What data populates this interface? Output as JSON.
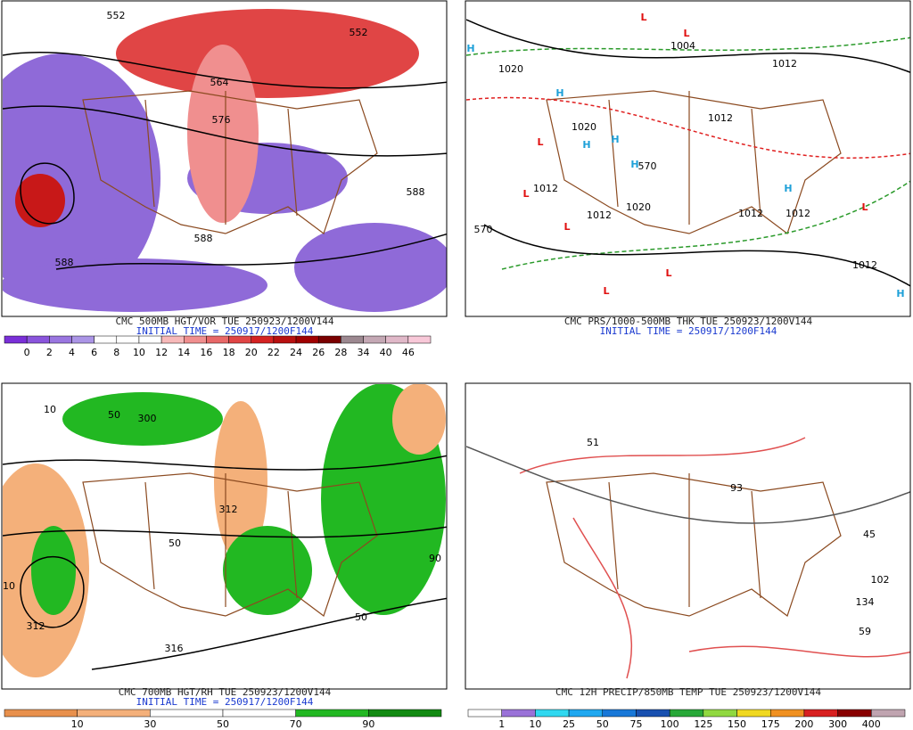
{
  "panels": [
    {
      "title": "CMC 500MB HGT/VOR TUE 250923/1200V144",
      "init": "INITIAL TIME = 250917/1200F144",
      "colorbar": {
        "labels": [
          "0",
          "2",
          "4",
          "6",
          "8",
          "10",
          "12",
          "14",
          "16",
          "18",
          "20",
          "22",
          "24",
          "26",
          "28",
          "34",
          "40",
          "46"
        ],
        "colors": [
          "#7a2fd8",
          "#8a55dc",
          "#9a76e0",
          "#ab95e6",
          "#ffffff",
          "#ffffff",
          "#ffffff",
          "#f7b9b9",
          "#f08f8f",
          "#e86868",
          "#e04545",
          "#d42222",
          "#b81010",
          "#a00000",
          "#7a0000",
          "#9c8890",
          "#c4a8b4",
          "#e0b8c8",
          "#f8c8d8"
        ]
      },
      "contour_labels": [
        "552",
        "552",
        "564",
        "576",
        "588",
        "588",
        "588"
      ],
      "markers": []
    },
    {
      "title": "CMC PRS/1000-500MB THK TUE 250923/1200V144",
      "init": "INITIAL TIME = 250917/1200F144",
      "contour_labels": [
        "1020",
        "1004",
        "1012",
        "1020",
        "1012",
        "1012",
        "1020",
        "1012",
        "1012",
        "1012",
        "1012",
        "570",
        "570"
      ],
      "markers": [
        {
          "label": "H",
          "color": "#1ea0d8"
        },
        {
          "label": "H",
          "color": "#1ea0d8"
        },
        {
          "label": "H",
          "color": "#1ea0d8"
        },
        {
          "label": "H",
          "color": "#1ea0d8"
        },
        {
          "label": "H",
          "color": "#1ea0d8"
        },
        {
          "label": "H",
          "color": "#1ea0d8"
        },
        {
          "label": "H",
          "color": "#1ea0d8"
        },
        {
          "label": "L",
          "color": "#e01010"
        },
        {
          "label": "L",
          "color": "#e01010"
        },
        {
          "label": "L",
          "color": "#e01010"
        },
        {
          "label": "L",
          "color": "#e01010"
        },
        {
          "label": "L",
          "color": "#e01010"
        },
        {
          "label": "L",
          "color": "#e01010"
        },
        {
          "label": "L",
          "color": "#e01010"
        },
        {
          "label": "L",
          "color": "#e01010"
        }
      ]
    },
    {
      "title": "CMC 700MB HGT/RH TUE 250923/1200V144",
      "init": "INITIAL TIME = 250917/1200F144",
      "colorbar": {
        "labels": [
          "10",
          "30",
          "50",
          "70",
          "90"
        ],
        "colors": [
          "#e8904c",
          "#f4b07a",
          "#ffffff",
          "#ffffff",
          "#22b822",
          "#128a12"
        ]
      },
      "contour_labels": [
        "10",
        "50",
        "300",
        "312",
        "50",
        "316",
        "312",
        "10",
        "90",
        "50"
      ],
      "markers": []
    },
    {
      "title": "CMC 12H PRECIP/850MB TEMP TUE 250923/1200V144",
      "colorbar": {
        "labels": [
          "1",
          "10",
          "25",
          "50",
          "75",
          "100",
          "125",
          "150",
          "175",
          "200",
          "300",
          "400"
        ],
        "colors": [
          "#ffffff",
          "#9a72d8",
          "#30d8f0",
          "#20a8f0",
          "#1878d8",
          "#1850b0",
          "#28a838",
          "#90d840",
          "#f0d820",
          "#f09020",
          "#d82020",
          "#880000",
          "#c0a4b0"
        ]
      },
      "contour_labels": [
        "93",
        "45",
        "102",
        "134",
        "59",
        "51"
      ],
      "markers": []
    }
  ]
}
